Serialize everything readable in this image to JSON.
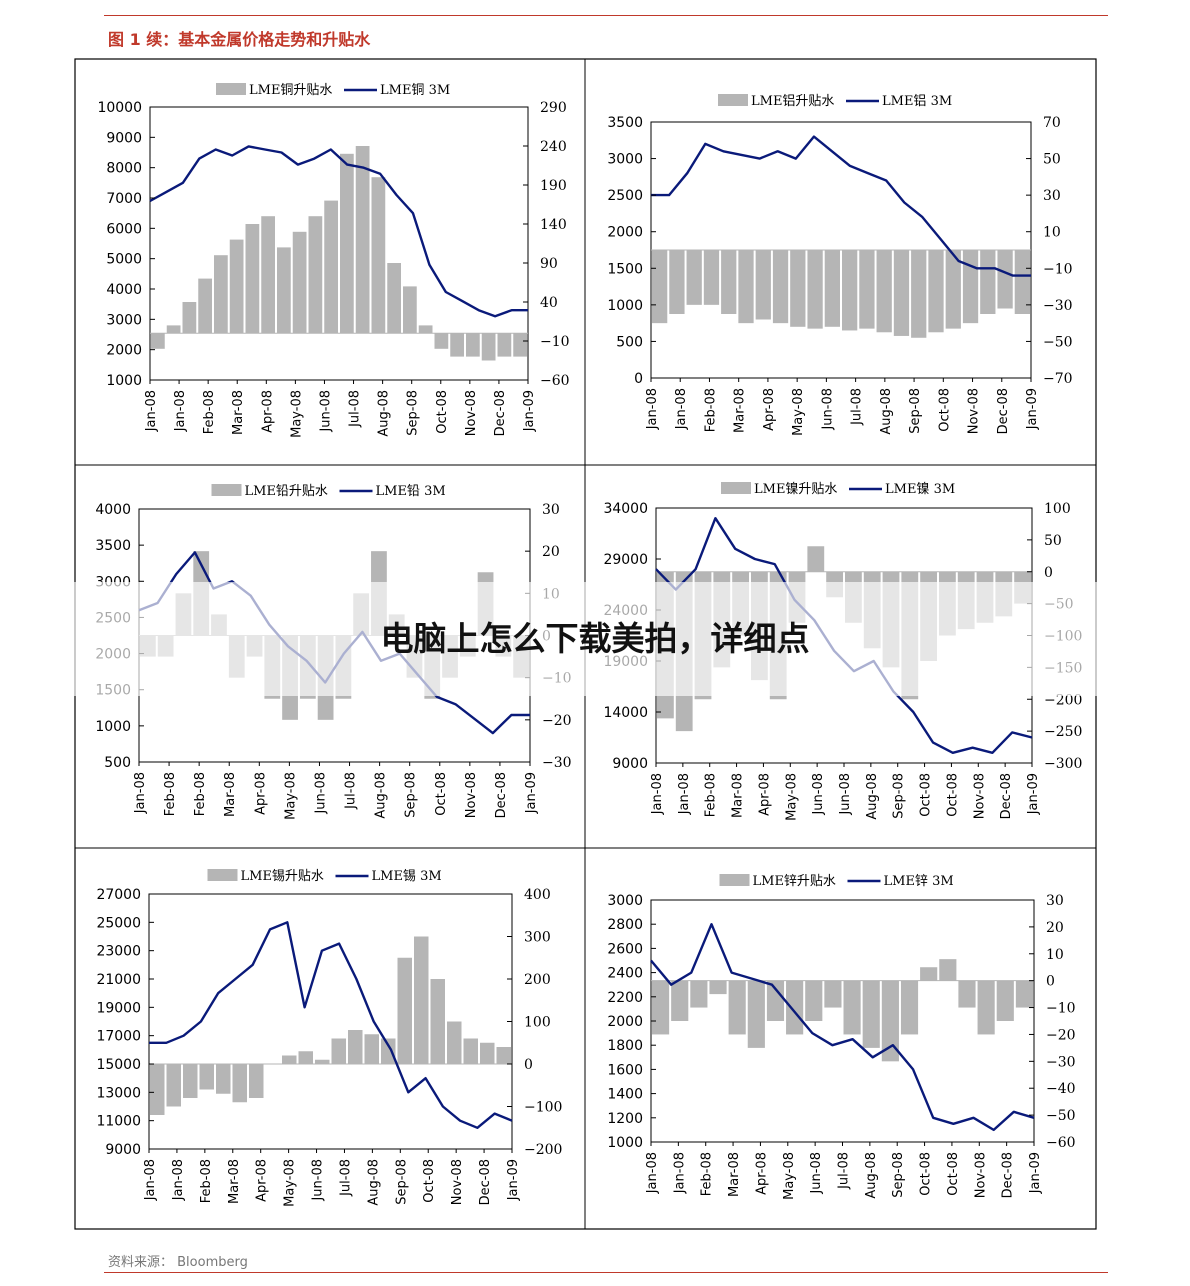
{
  "figure_title": "图 1 续：基本金属价格走势和升贴水",
  "source": "资料来源：  Bloomberg",
  "overlay_title": "电脑上怎么下载美拍，详细点",
  "colors": {
    "bar": "#b5b5b5",
    "line": "#0a1a7a",
    "accent": "#c0392b",
    "frame": "#000000"
  },
  "chart_data": [
    {
      "type": "bar+line",
      "legend": {
        "bar": "LME铜升贴水",
        "line": "LME铜  3M"
      },
      "x_labels": [
        "Jan-08",
        "Jan-08",
        "Feb-08",
        "Mar-08",
        "Apr-08",
        "May-08",
        "Jun-08",
        "Jul-08",
        "Aug-08",
        "Sep-08",
        "Oct-08",
        "Nov-08",
        "Dec-08",
        "Jan-09"
      ],
      "y_left": {
        "min": 1000,
        "max": 10000,
        "ticks": [
          10000,
          9000,
          8000,
          7000,
          6000,
          5000,
          4000,
          3000,
          2000,
          1000
        ]
      },
      "y_right": {
        "min": -60,
        "max": 290,
        "ticks": [
          290,
          240,
          190,
          140,
          90,
          40,
          -10,
          -60
        ]
      },
      "line_values": [
        6900,
        7200,
        7500,
        8300,
        8600,
        8400,
        8700,
        8600,
        8500,
        8100,
        8300,
        8600,
        8100,
        8000,
        7800,
        7100,
        6500,
        4800,
        3900,
        3600,
        3300,
        3100,
        3300,
        3300
      ],
      "bar_values": [
        -20,
        10,
        40,
        70,
        100,
        120,
        140,
        150,
        110,
        130,
        150,
        170,
        230,
        240,
        200,
        90,
        60,
        10,
        -20,
        -30,
        -30,
        -35,
        -30,
        -30
      ]
    },
    {
      "type": "bar+line",
      "legend": {
        "bar": "LME铝升贴水",
        "line": "LME铝  3M"
      },
      "x_labels": [
        "Jan-08",
        "Jan-08",
        "Feb-08",
        "Mar-08",
        "Apr-08",
        "May-08",
        "Jun-08",
        "Jul-08",
        "Aug-08",
        "Sep-08",
        "Oct-08",
        "Nov-08",
        "Dec-08",
        "Jan-09"
      ],
      "y_left": {
        "min": 0,
        "max": 3500,
        "ticks": [
          3500,
          3000,
          2500,
          2000,
          1500,
          1000,
          500,
          0
        ]
      },
      "y_right": {
        "min": -70,
        "max": 70,
        "ticks": [
          70,
          50,
          30,
          10,
          -10,
          -30,
          -50,
          -70
        ]
      },
      "line_values": [
        2500,
        2500,
        2800,
        3200,
        3100,
        3050,
        3000,
        3100,
        3000,
        3300,
        3100,
        2900,
        2800,
        2700,
        2400,
        2200,
        1900,
        1600,
        1500,
        1500,
        1400,
        1400
      ],
      "bar_values": [
        -40,
        -35,
        -30,
        -30,
        -35,
        -40,
        -38,
        -40,
        -42,
        -43,
        -42,
        -44,
        -43,
        -45,
        -47,
        -48,
        -45,
        -43,
        -40,
        -35,
        -32,
        -35
      ]
    },
    {
      "type": "bar+line",
      "legend": {
        "bar": "LME铅升贴水",
        "line": "LME铅  3M"
      },
      "x_labels": [
        "Jan-08",
        "Feb-08",
        "Feb-08",
        "Mar-08",
        "Apr-08",
        "May-08",
        "Jun-08",
        "Jul-08",
        "Aug-08",
        "Sep-08",
        "Oct-08",
        "Nov-08",
        "Dec-08",
        "Jan-09"
      ],
      "y_left": {
        "min": 500,
        "max": 4000,
        "ticks": [
          4000,
          3500,
          3000,
          2500,
          2000,
          1500,
          1000,
          500
        ]
      },
      "y_right": {
        "min": -30,
        "max": 30,
        "ticks": [
          30,
          20,
          10,
          0,
          -10,
          -20,
          -30
        ]
      },
      "line_values": [
        2600,
        2700,
        3100,
        3400,
        2900,
        3000,
        2800,
        2400,
        2100,
        1900,
        1600,
        2000,
        2300,
        1900,
        2000,
        1700,
        1400,
        1300,
        1100,
        900,
        1150,
        1150
      ],
      "bar_values": [
        -5,
        -5,
        10,
        20,
        5,
        -10,
        -5,
        -15,
        -20,
        -15,
        -20,
        -15,
        10,
        20,
        5,
        -10,
        -15,
        -10,
        -5,
        15,
        -5,
        -10
      ]
    },
    {
      "type": "bar+line",
      "legend": {
        "bar": "LME镍升贴水",
        "line": "LME镍  3M"
      },
      "x_labels": [
        "Jan-08",
        "Jan-08",
        "Feb-08",
        "Mar-08",
        "Apr-08",
        "May-08",
        "Jun-08",
        "Jun-08",
        "Aug-08",
        "Sep-08",
        "Oct-08",
        "Oct-08",
        "Nov-08",
        "Dec-08",
        "Jan-09"
      ],
      "y_left": {
        "min": 9000,
        "max": 34000,
        "ticks": [
          34000,
          29000,
          24000,
          19000,
          14000,
          9000
        ]
      },
      "y_right": {
        "min": -300,
        "max": 100,
        "ticks": [
          100,
          50,
          0,
          -50,
          -100,
          -150,
          -200,
          -250,
          -300
        ]
      },
      "line_values": [
        28000,
        26000,
        28000,
        33000,
        30000,
        29000,
        28500,
        25000,
        23000,
        20000,
        18000,
        19000,
        16000,
        14000,
        11000,
        10000,
        10500,
        10000,
        12000,
        11500
      ],
      "bar_values": [
        -230,
        -250,
        -200,
        -150,
        -100,
        -170,
        -200,
        -80,
        40,
        -40,
        -80,
        -120,
        -150,
        -200,
        -140,
        -100,
        -90,
        -80,
        -70,
        -50
      ]
    },
    {
      "type": "bar+line",
      "legend": {
        "bar": "LME锡升贴水",
        "line": "LME锡  3M"
      },
      "x_labels": [
        "Jan-08",
        "Jan-08",
        "Feb-08",
        "Mar-08",
        "Apr-08",
        "May-08",
        "Jun-08",
        "Jul-08",
        "Aug-08",
        "Sep-08",
        "Oct-08",
        "Nov-08",
        "Dec-08",
        "Jan-09"
      ],
      "y_left": {
        "min": 9000,
        "max": 27000,
        "ticks": [
          27000,
          25000,
          23000,
          21000,
          19000,
          17000,
          15000,
          13000,
          11000,
          9000
        ]
      },
      "y_right": {
        "min": -200,
        "max": 400,
        "ticks": [
          400,
          300,
          200,
          100,
          0,
          -100,
          -200
        ]
      },
      "line_values": [
        16500,
        16500,
        17000,
        18000,
        20000,
        21000,
        22000,
        24500,
        25000,
        19000,
        23000,
        23500,
        21000,
        18000,
        16000,
        13000,
        14000,
        12000,
        11000,
        10500,
        11500,
        11000
      ],
      "bar_values": [
        -120,
        -100,
        -80,
        -60,
        -70,
        -90,
        -80,
        0,
        20,
        30,
        10,
        60,
        80,
        70,
        60,
        250,
        300,
        200,
        100,
        60,
        50,
        40
      ]
    },
    {
      "type": "bar+line",
      "legend": {
        "bar": "LME锌升贴水",
        "line": "LME锌  3M"
      },
      "x_labels": [
        "Jan-08",
        "Jan-08",
        "Feb-08",
        "Mar-08",
        "Apr-08",
        "May-08",
        "Jun-08",
        "Jul-08",
        "Aug-08",
        "Sep-08",
        "Oct-08",
        "Oct-08",
        "Nov-08",
        "Dec-08",
        "Jan-09"
      ],
      "y_left": {
        "min": 1000,
        "max": 3000,
        "ticks": [
          3000,
          2800,
          2600,
          2400,
          2200,
          2000,
          1800,
          1600,
          1400,
          1200,
          1000
        ]
      },
      "y_right": {
        "min": -60,
        "max": 30,
        "ticks": [
          30,
          20,
          10,
          0,
          -10,
          -20,
          -30,
          -40,
          -50,
          -60
        ]
      },
      "line_values": [
        2500,
        2300,
        2400,
        2800,
        2400,
        2350,
        2300,
        2100,
        1900,
        1800,
        1850,
        1700,
        1800,
        1600,
        1200,
        1150,
        1200,
        1100,
        1250,
        1200
      ],
      "bar_values": [
        -20,
        -15,
        -10,
        -5,
        -20,
        -25,
        -15,
        -20,
        -15,
        -10,
        -20,
        -25,
        -30,
        -20,
        5,
        8,
        -10,
        -20,
        -15,
        -10
      ]
    }
  ]
}
